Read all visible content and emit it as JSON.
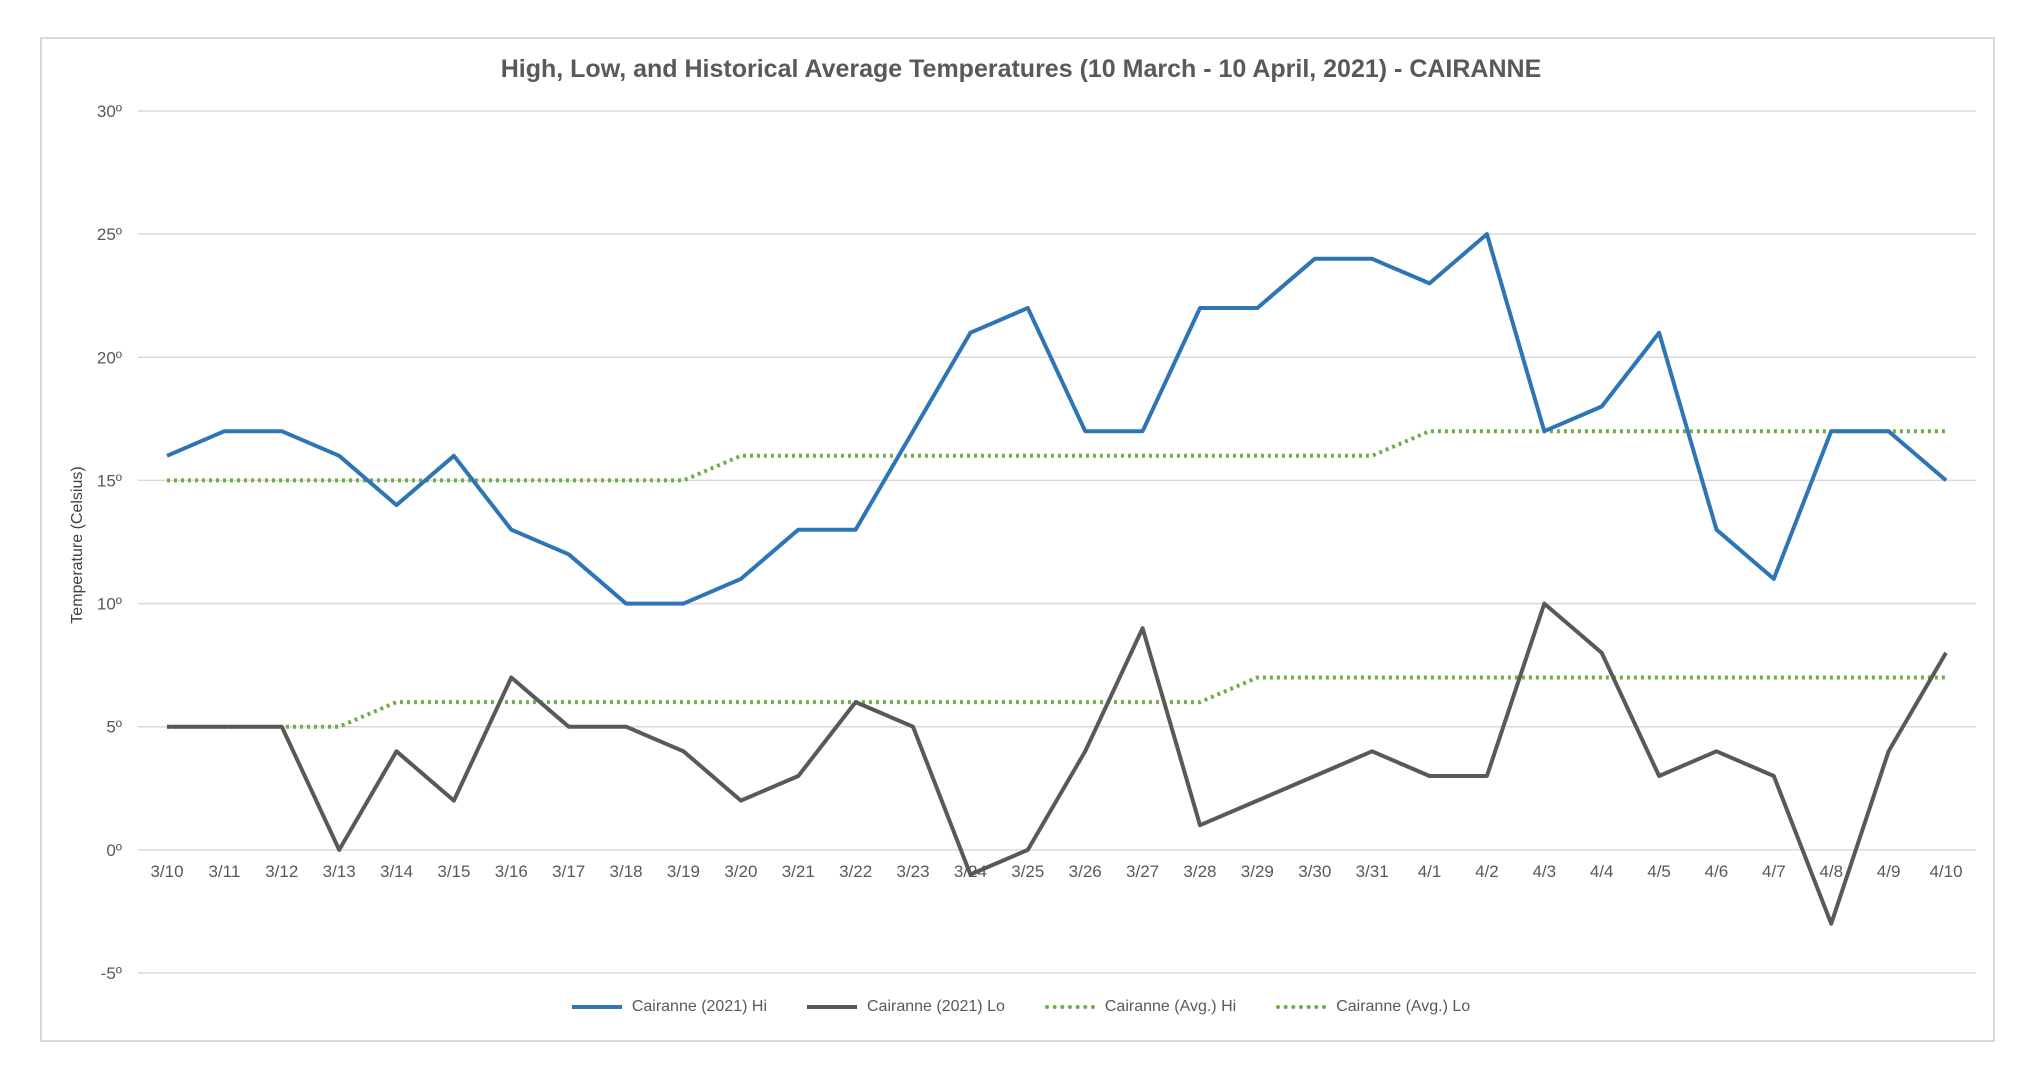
{
  "chart_data": {
    "type": "line",
    "title": "High, Low, and Historical Average Temperatures (10 March - 10 April, 2021) - CAIRANNE",
    "ylabel": "Temperature (Celsius)",
    "xlabel": "",
    "ylim": [
      -5,
      30
    ],
    "yticks": [
      -5,
      0,
      5,
      10,
      15,
      20,
      25,
      30
    ],
    "ytick_labels": [
      "-5º",
      "0º",
      "5º",
      "10º",
      "15º",
      "20º",
      "25º",
      "30º"
    ],
    "grid": "horizontal",
    "legend_position": "bottom",
    "categories": [
      "3/10",
      "3/11",
      "3/12",
      "3/13",
      "3/14",
      "3/15",
      "3/16",
      "3/17",
      "3/18",
      "3/19",
      "3/20",
      "3/21",
      "3/22",
      "3/23",
      "3/24",
      "3/25",
      "3/26",
      "3/27",
      "3/28",
      "3/29",
      "3/30",
      "3/31",
      "4/1",
      "4/2",
      "4/3",
      "4/4",
      "4/5",
      "4/6",
      "4/7",
      "4/8",
      "4/9",
      "4/10"
    ],
    "series": [
      {
        "name": "Cairanne (2021) Hi",
        "color": "#2e75b6",
        "style": "solid",
        "values": [
          16,
          17,
          17,
          16,
          14,
          16,
          13,
          12,
          10,
          10,
          11,
          13,
          13,
          17,
          21,
          22,
          17,
          17,
          22,
          22,
          24,
          24,
          23,
          25,
          17,
          18,
          21,
          13,
          11,
          17,
          17,
          15
        ]
      },
      {
        "name": "Cairanne (2021) Lo",
        "color": "#595959",
        "style": "solid",
        "values": [
          5,
          5,
          5,
          0,
          4,
          2,
          7,
          5,
          5,
          4,
          2,
          3,
          6,
          5,
          -1,
          0,
          4,
          9,
          1,
          2,
          3,
          4,
          3,
          3,
          10,
          8,
          3,
          4,
          3,
          -3,
          4,
          8
        ]
      },
      {
        "name": "Cairanne (Avg.) Hi",
        "color": "#70ad47",
        "style": "dotted",
        "values": [
          15,
          15,
          15,
          15,
          15,
          15,
          15,
          15,
          15,
          15,
          16,
          16,
          16,
          16,
          16,
          16,
          16,
          16,
          16,
          16,
          16,
          16,
          17,
          17,
          17,
          17,
          17,
          17,
          17,
          17,
          17,
          17
        ]
      },
      {
        "name": "Cairanne (Avg.) Lo",
        "color": "#70ad47",
        "style": "dotted",
        "values": [
          5,
          5,
          5,
          5,
          6,
          6,
          6,
          6,
          6,
          6,
          6,
          6,
          6,
          6,
          6,
          6,
          6,
          6,
          6,
          7,
          7,
          7,
          7,
          7,
          7,
          7,
          7,
          7,
          7,
          7,
          7,
          7
        ]
      }
    ]
  }
}
